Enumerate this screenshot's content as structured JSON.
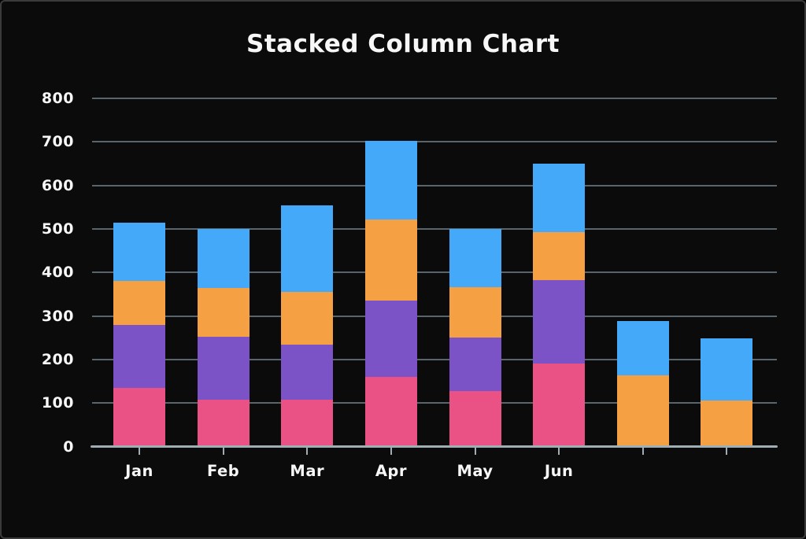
{
  "frame": {
    "title": "Stacked Column Chart"
  },
  "palette": {
    "background": "#0b0b0c",
    "frame_border": "#3b3b3b",
    "text": "#f7f7f7",
    "gridline": "#6d7c85",
    "axis_line": "#9fadb5"
  },
  "chart_data": {
    "type": "bar",
    "stacked": true,
    "title": "Stacked Column Chart",
    "xlabel": "",
    "ylabel": "",
    "categories": [
      "Jan",
      "Feb",
      "Mar",
      "Apr",
      "May",
      "Jun",
      "",
      ""
    ],
    "series": [
      {
        "name": "pink",
        "color": "#EA5285",
        "values": [
          135,
          107,
          107,
          160,
          127,
          190,
          0,
          0
        ]
      },
      {
        "name": "purple",
        "color": "#7C52C7",
        "values": [
          145,
          145,
          127,
          175,
          123,
          192,
          0,
          0
        ]
      },
      {
        "name": "orange",
        "color": "#F6A044",
        "values": [
          100,
          113,
          122,
          187,
          117,
          111,
          164,
          105
        ]
      },
      {
        "name": "blue",
        "color": "#44A9F9",
        "values": [
          135,
          135,
          199,
          181,
          133,
          157,
          124,
          143
        ]
      }
    ],
    "stack_totals": [
      515,
      500,
      555,
      703,
      500,
      650,
      288,
      248
    ],
    "ylim": [
      0,
      800
    ],
    "yticks": [
      0,
      100,
      200,
      300,
      400,
      500,
      600,
      700,
      800
    ],
    "grid": true,
    "legend": false
  }
}
